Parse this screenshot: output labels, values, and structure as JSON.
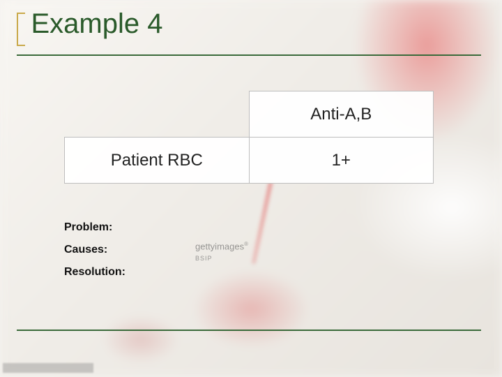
{
  "slide": {
    "title": "Example 4",
    "accent_color": "#c9a94a",
    "title_color": "#2a5a2a",
    "rule_color": "#3a6a3a"
  },
  "table": {
    "header_blank": "",
    "header_col": "Anti-A,B",
    "row_label": "Patient RBC",
    "row_value": "1+",
    "cell_bg": "#ffffff",
    "border_color": "#bdbdbd",
    "font_size_pt": 18
  },
  "labels": {
    "problem": "Problem:",
    "causes": "Causes:",
    "resolution": "Resolution:"
  },
  "watermark": {
    "line1": "gettyimages",
    "line2": "BSIP"
  },
  "background": {
    "base_color": "#f5f3f0",
    "red_accent": "#dc5050"
  }
}
